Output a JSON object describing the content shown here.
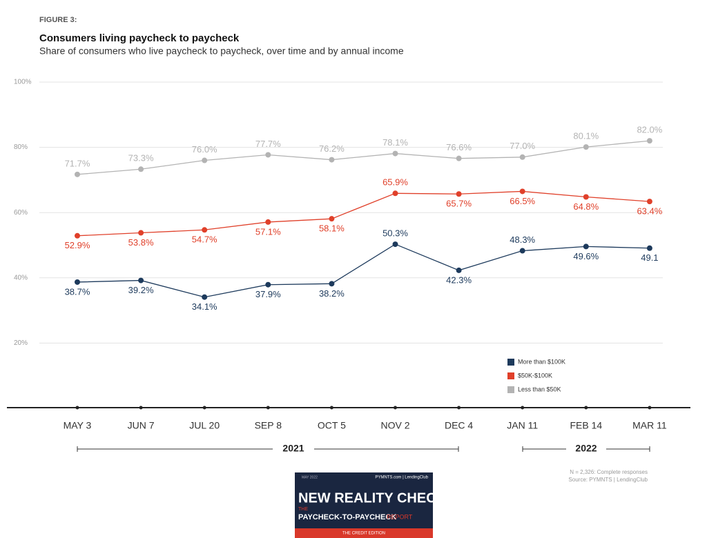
{
  "figure_label": "FIGURE 3:",
  "chart_data": {
    "type": "line",
    "title": "Consumers living paycheck to paycheck",
    "subtitle": "Share of consumers who live paycheck to paycheck, over time and by annual income",
    "categories": [
      "MAY 3",
      "JUN 7",
      "JUL 20",
      "SEP 8",
      "OCT 5",
      "NOV 2",
      "DEC 4",
      "JAN 11",
      "FEB 14",
      "MAR 11"
    ],
    "annotations": [
      "2021",
      "2022"
    ],
    "series": [
      {
        "name": "More than $100K",
        "color": "#1d3a5c",
        "values": [
          38.7,
          39.2,
          34.1,
          37.9,
          38.2,
          50.3,
          42.3,
          48.3,
          49.6,
          49.1
        ],
        "value_labels": [
          "38.7%",
          "39.2%",
          "34.1%",
          "37.9%",
          "38.2%",
          "50.3%",
          "42.3%",
          "48.3%",
          "49.6%",
          "49.1"
        ]
      },
      {
        "name": "$50K-$100K",
        "color": "#e0402a",
        "values": [
          52.9,
          53.8,
          54.7,
          57.1,
          58.1,
          65.9,
          65.7,
          66.5,
          64.8,
          63.4
        ],
        "value_labels": [
          "52.9%",
          "53.8%",
          "54.7%",
          "57.1%",
          "58.1%",
          "65.9%",
          "65.7%",
          "66.5%",
          "64.8%",
          "63.4%"
        ]
      },
      {
        "name": "Less than $50K",
        "color": "#b3b3b3",
        "values": [
          71.7,
          73.3,
          76.0,
          77.7,
          76.2,
          78.1,
          76.6,
          77.0,
          80.1,
          82.0
        ],
        "value_labels": [
          "71.7%",
          "73.3%",
          "76.0%",
          "77.7%",
          "76.2%",
          "78.1%",
          "76.6%",
          "77.0%",
          "80.1%",
          "82.0%"
        ]
      }
    ],
    "ylim": [
      0,
      100
    ],
    "yticks": [
      {
        "value": 20,
        "label": "20%"
      },
      {
        "value": 40,
        "label": "40%"
      },
      {
        "value": 60,
        "label": "60%"
      },
      {
        "value": 80,
        "label": "80%"
      },
      {
        "value": 100,
        "label": "100%"
      }
    ],
    "grid": true
  },
  "footnotes": [
    "N = 2,326: Complete responses",
    "Source: PYMNTS  |  LendingClub"
  ],
  "report_cover": {
    "date": "MAY 2022",
    "brands": "PYMNTS.com  |  LendingClub",
    "title": "NEW REALITY CHECK:",
    "kicker": "THE",
    "subtitle": "PAYCHECK-TO-PAYCHECK",
    "subtitle_tail": "REPORT",
    "edition": "THE CREDIT EDITION"
  }
}
